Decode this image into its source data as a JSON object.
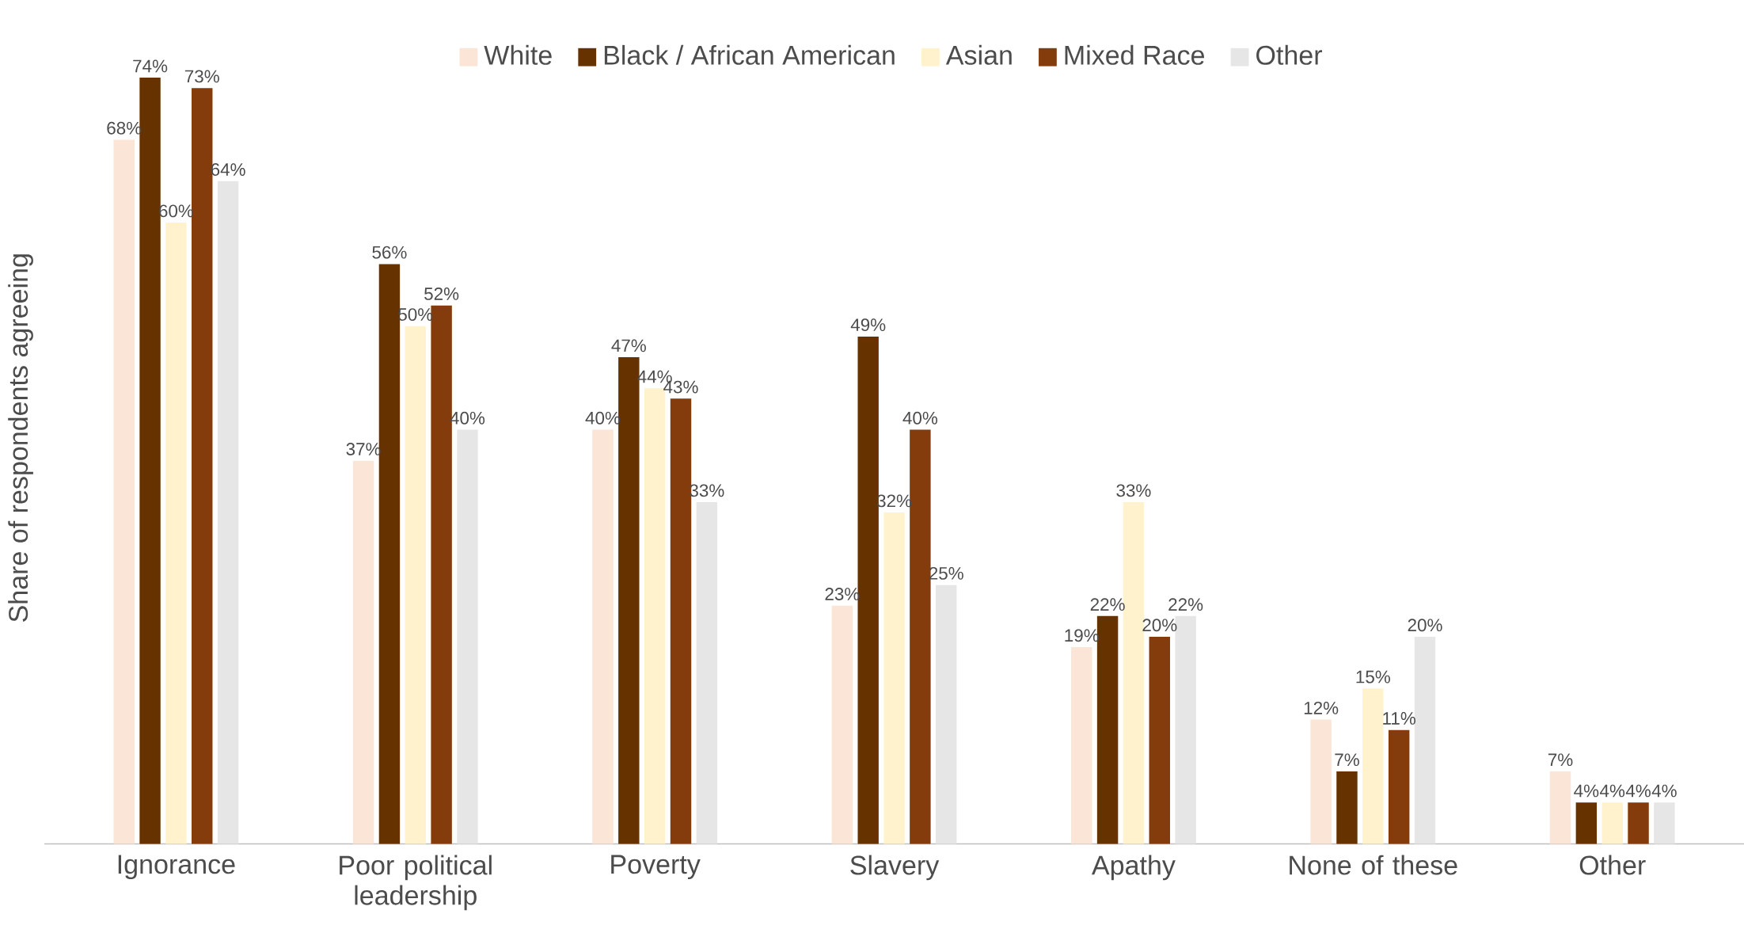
{
  "chart_data": {
    "type": "bar",
    "ylabel": "Share of respondents agreeing",
    "categories": [
      "Ignorance",
      "Poor political leadership",
      "Poverty",
      "Slavery",
      "Apathy",
      "None of these",
      "Other"
    ],
    "series": [
      {
        "name": "White",
        "color": "#fbe5d6",
        "values": [
          68,
          37,
          40,
          23,
          19,
          12,
          7
        ],
        "value_labels": [
          "68%",
          "37%",
          "40%",
          "23%",
          "19%",
          "12%",
          "7%"
        ]
      },
      {
        "name": "Black / African American",
        "color": "#663300",
        "values": [
          74,
          56,
          47,
          49,
          22,
          7,
          4
        ],
        "value_labels": [
          "74%",
          "56%",
          "47%",
          "49%",
          "22%",
          "7%",
          "4%"
        ]
      },
      {
        "name": "Asian",
        "color": "#fff2cc",
        "values": [
          60,
          50,
          44,
          32,
          33,
          15,
          4
        ],
        "value_labels": [
          "60%",
          "50%",
          "44%",
          "32%",
          "33%",
          "15%",
          "4%"
        ]
      },
      {
        "name": "Mixed Race",
        "color": "#843c0c",
        "values": [
          73,
          52,
          43,
          40,
          20,
          11,
          4
        ],
        "value_labels": [
          "73%",
          "52%",
          "43%",
          "40%",
          "20%",
          "11%",
          "4%"
        ]
      },
      {
        "name": "Other",
        "color": "#e7e6e6",
        "values": [
          64,
          40,
          33,
          25,
          22,
          20,
          4
        ],
        "value_labels": [
          "64%",
          "40%",
          "33%",
          "25%",
          "22%",
          "20%",
          "4%"
        ]
      }
    ],
    "legend": "top"
  }
}
